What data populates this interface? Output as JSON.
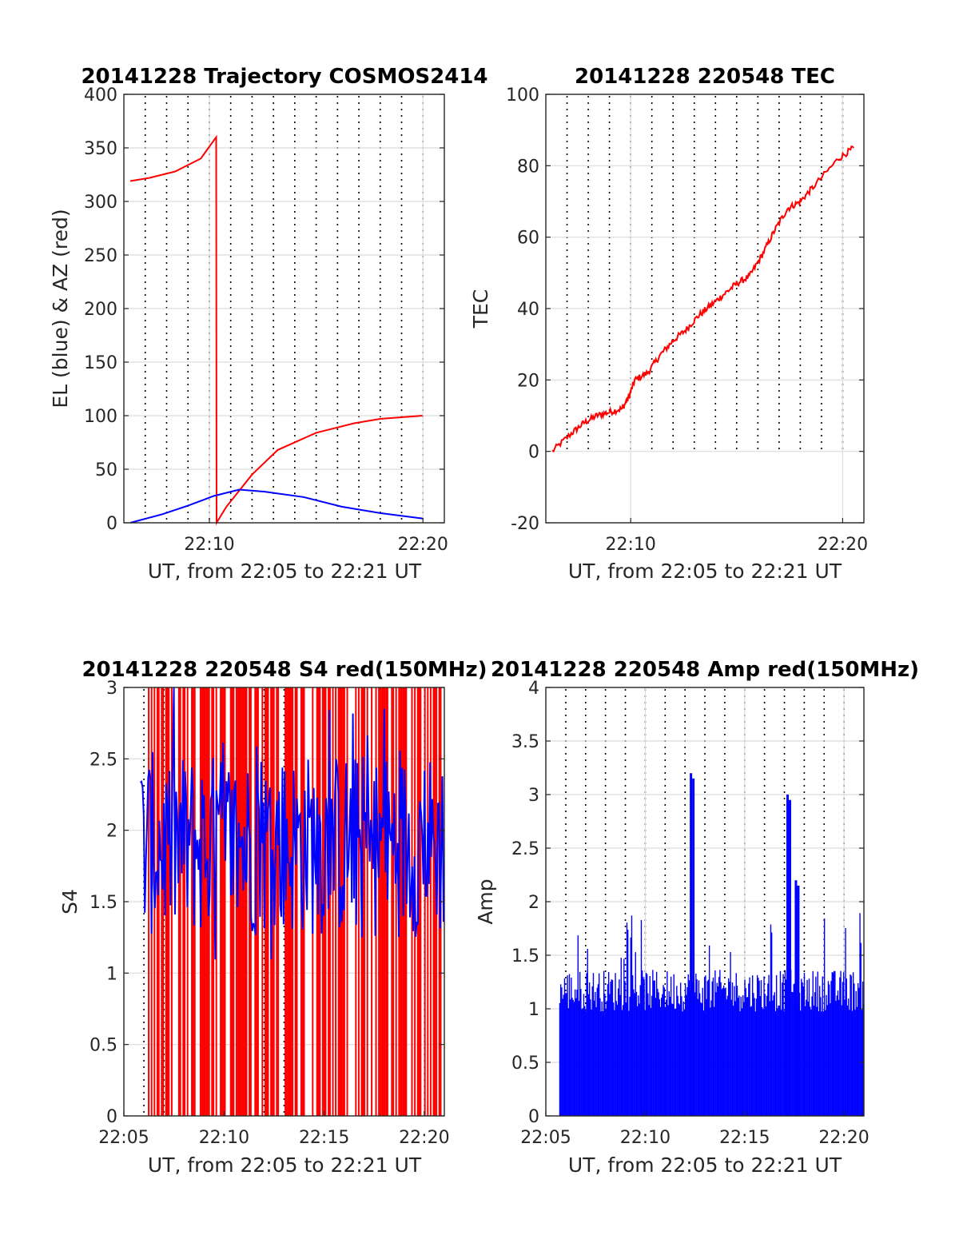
{
  "colors": {
    "red": "#ff0000",
    "blue": "#0000ff",
    "grid": "#dcdcdc",
    "axis": "#262626"
  },
  "chart_data": [
    {
      "id": "trajectory",
      "type": "line",
      "title": "20141228 Trajectory COSMOS2414",
      "xlabel": "UT, from 22:05 to 22:21 UT",
      "ylabel": "EL (blue) & AZ (red)",
      "xlim": [
        22.1,
        22.35
      ],
      "ylim": [
        0,
        400
      ],
      "xticks": [
        {
          "label": "22:10",
          "value": 22.1667
        },
        {
          "label": "22:20",
          "value": 22.3333
        }
      ],
      "yticks": [
        0,
        50,
        100,
        150,
        200,
        250,
        300,
        350,
        400
      ],
      "grid": true,
      "series": [
        {
          "color": "red",
          "x": [
            22.105,
            22.12,
            22.14,
            22.16,
            22.172,
            22.1723,
            22.18,
            22.2,
            22.22,
            22.25,
            22.28,
            22.3,
            22.333
          ],
          "y": [
            319,
            322,
            328,
            340,
            360,
            0,
            15,
            45,
            68,
            84,
            93,
            97,
            100
          ]
        },
        {
          "color": "blue",
          "x": [
            22.105,
            22.13,
            22.15,
            22.17,
            22.19,
            22.21,
            22.24,
            22.27,
            22.3,
            22.333
          ],
          "y": [
            0,
            8,
            16,
            25,
            31,
            29,
            24,
            15,
            9,
            4
          ]
        }
      ]
    },
    {
      "id": "tec",
      "type": "line",
      "title": "20141228 220548 TEC",
      "xlabel": "UT, from 22:05 to 22:21 UT",
      "ylabel": "TEC",
      "xlim": [
        22.1,
        22.35
      ],
      "ylim": [
        -20,
        100
      ],
      "xticks": [
        {
          "label": "22:10",
          "value": 22.1667
        },
        {
          "label": "22:20",
          "value": 22.3333
        }
      ],
      "yticks": [
        -20,
        0,
        20,
        40,
        60,
        80,
        100
      ],
      "grid": true,
      "series": [
        {
          "color": "red",
          "x": [
            22.105,
            22.12,
            22.13,
            22.14,
            22.15,
            22.16,
            22.165,
            22.17,
            22.18,
            22.19,
            22.2,
            22.21,
            22.22,
            22.23,
            22.24,
            22.25,
            22.26,
            22.27,
            22.28,
            22.29,
            22.3,
            22.31,
            22.33,
            22.342
          ],
          "y": [
            0,
            5,
            8,
            10,
            11,
            12,
            15,
            20,
            22,
            27,
            31,
            34,
            38,
            41,
            44,
            47,
            49,
            55,
            62,
            68,
            70,
            74,
            82,
            85
          ]
        }
      ]
    },
    {
      "id": "s4",
      "type": "line",
      "title": "20141228 220548 S4 red(150MHz)",
      "xlabel": "UT, from 22:05 to 22:21 UT",
      "ylabel": "S4",
      "xlim": [
        22.0833,
        22.35
      ],
      "ylim": [
        0,
        3
      ],
      "xticks": [
        {
          "label": "22:05",
          "value": 22.0833
        },
        {
          "label": "22:10",
          "value": 22.1667
        },
        {
          "label": "22:15",
          "value": 22.25
        },
        {
          "label": "22:20",
          "value": 22.3333
        }
      ],
      "yticks": [
        0,
        0.5,
        1,
        1.5,
        2,
        2.5,
        3
      ],
      "grid": true,
      "series": [
        {
          "color": "red",
          "type": "spikes",
          "x_range": [
            22.098,
            22.35
          ],
          "y_range": [
            0,
            3
          ]
        },
        {
          "color": "blue",
          "type": "noise",
          "x_range": [
            22.097,
            22.35
          ],
          "typical": 1.9,
          "y_range": [
            1.0,
            3.0
          ]
        }
      ]
    },
    {
      "id": "amp",
      "type": "line",
      "title": "20141228 220548 Amp red(150MHz)",
      "xlabel": "UT, from 22:05 to 22:21 UT",
      "ylabel": "Amp",
      "xlim": [
        22.0833,
        22.35
      ],
      "ylim": [
        0,
        4
      ],
      "xticks": [
        {
          "label": "22:05",
          "value": 22.0833
        },
        {
          "label": "22:10",
          "value": 22.1667
        },
        {
          "label": "22:15",
          "value": 22.25
        },
        {
          "label": "22:20",
          "value": 22.3333
        }
      ],
      "yticks": [
        0,
        0.5,
        1,
        1.5,
        2,
        2.5,
        3,
        3.5,
        4
      ],
      "grid": true,
      "series": [
        {
          "color": "blue",
          "type": "bars",
          "x_range": [
            22.095,
            22.35
          ],
          "typical_peak": 1.3,
          "peaks": [
            {
              "x": 22.205,
              "y": 3.2
            },
            {
              "x": 22.286,
              "y": 3.0
            },
            {
              "x": 22.293,
              "y": 2.2
            }
          ]
        }
      ]
    }
  ]
}
